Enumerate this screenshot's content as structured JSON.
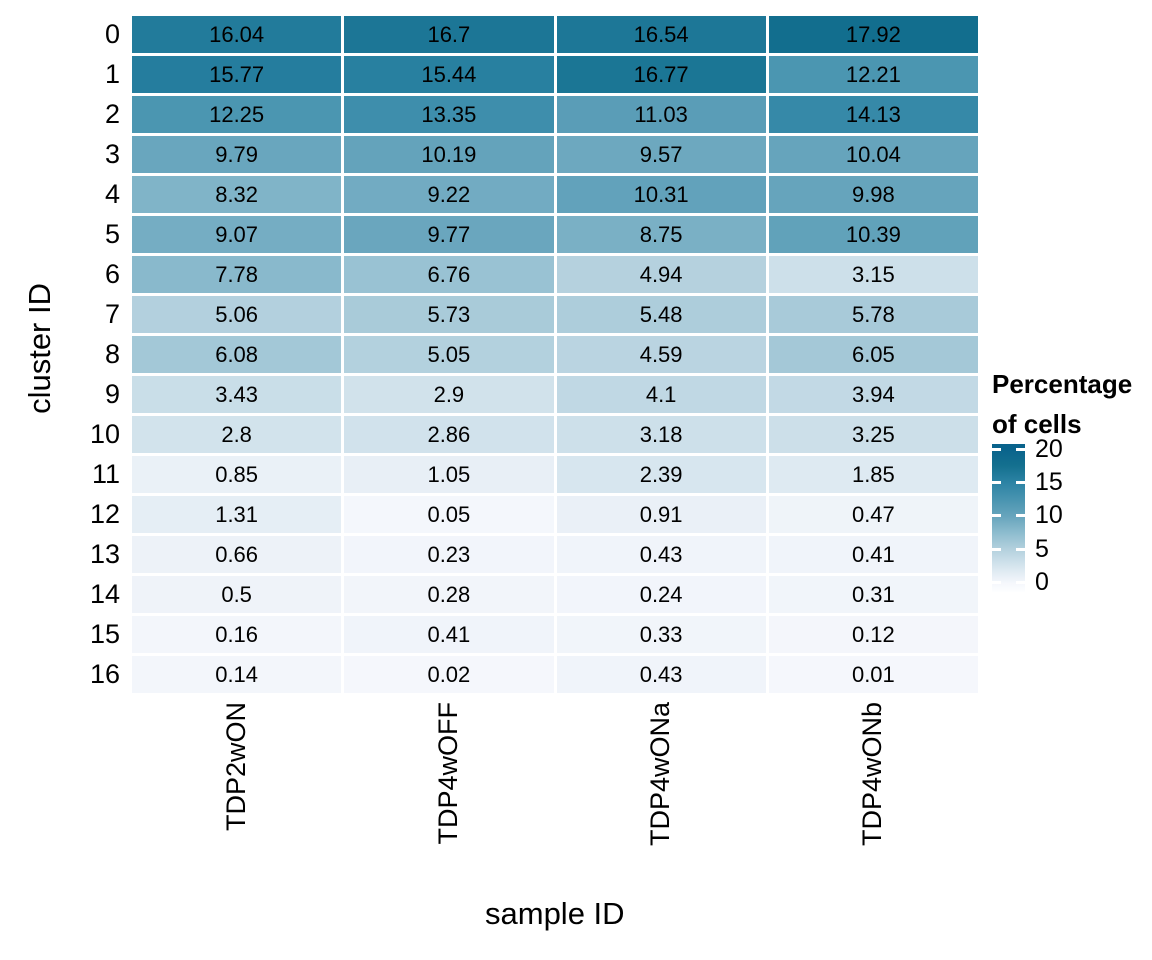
{
  "chart_data": {
    "type": "heatmap",
    "xlabel": "sample ID",
    "ylabel": "cluster ID",
    "x_categories": [
      "TDP2wON",
      "TDP4wOFF",
      "TDP4wONa",
      "TDP4wONb"
    ],
    "y_categories": [
      "0",
      "1",
      "2",
      "3",
      "4",
      "5",
      "6",
      "7",
      "8",
      "9",
      "10",
      "11",
      "12",
      "13",
      "14",
      "15",
      "16"
    ],
    "values": [
      [
        16.04,
        16.7,
        16.54,
        17.92
      ],
      [
        15.77,
        15.44,
        16.77,
        12.21
      ],
      [
        12.25,
        13.35,
        11.03,
        14.13
      ],
      [
        9.79,
        10.19,
        9.57,
        10.04
      ],
      [
        8.32,
        9.22,
        10.31,
        9.98
      ],
      [
        9.07,
        9.77,
        8.75,
        10.39
      ],
      [
        7.78,
        6.76,
        4.94,
        3.15
      ],
      [
        5.06,
        5.73,
        5.48,
        5.78
      ],
      [
        6.08,
        5.05,
        4.59,
        6.05
      ],
      [
        3.43,
        2.9,
        4.1,
        3.94
      ],
      [
        2.8,
        2.86,
        3.18,
        3.25
      ],
      [
        0.85,
        1.05,
        2.39,
        1.85
      ],
      [
        1.31,
        0.05,
        0.91,
        0.47
      ],
      [
        0.66,
        0.23,
        0.43,
        0.41
      ],
      [
        0.5,
        0.28,
        0.24,
        0.31
      ],
      [
        0.16,
        0.41,
        0.33,
        0.12
      ],
      [
        0.14,
        0.02,
        0.43,
        0.01
      ]
    ],
    "legend": {
      "title_line1": "Percentage",
      "title_line2": "of cells",
      "ticks": [
        20,
        15,
        10,
        5,
        0
      ],
      "bar_top_value": 20.75,
      "bar_bottom_value": -1.35
    },
    "colormap_stops": [
      [
        0,
        "#f5f7fc"
      ],
      [
        2.5,
        "#d6e5ee"
      ],
      [
        5,
        "#b4d1de"
      ],
      [
        7.5,
        "#8dbcce"
      ],
      [
        10,
        "#66a4bc"
      ],
      [
        12.5,
        "#4894b0"
      ],
      [
        15,
        "#2c83a4"
      ],
      [
        17.5,
        "#14708f"
      ],
      [
        20,
        "#09638c"
      ]
    ],
    "grid": true,
    "value_text_color": "#000000"
  }
}
